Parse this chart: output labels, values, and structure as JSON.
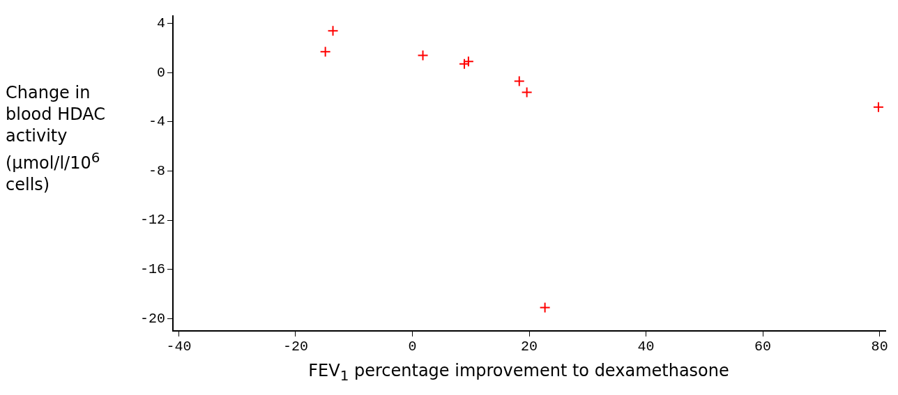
{
  "chart_data": {
    "type": "scatter",
    "xlabel": "FEV$_{1}$ percentage improvement to dexamethasone",
    "ylabel": "Change in blood HDAC activity (µmol/l/10$^{6}$ cells)",
    "x": [
      -13.6,
      -14.9,
      1.8,
      8.9,
      9.6,
      18.3,
      19.6,
      22.7,
      79.8
    ],
    "series": [
      {
        "color": "#ff0000",
        "values": [
          3.4,
          1.7,
          1.4,
          0.7,
          0.9,
          -0.7,
          -1.6,
          -19.1,
          -2.8
        ]
      }
    ],
    "xlim": [
      -41,
      81
    ],
    "xticks": [
      -40,
      -20,
      0,
      20,
      40,
      60,
      80
    ],
    "ylim": [
      -21,
      4.6
    ],
    "yticks": [
      -20,
      -16,
      -12,
      -8,
      -4,
      0,
      4
    ],
    "grid": false,
    "legend": false,
    "marker": "cross"
  }
}
